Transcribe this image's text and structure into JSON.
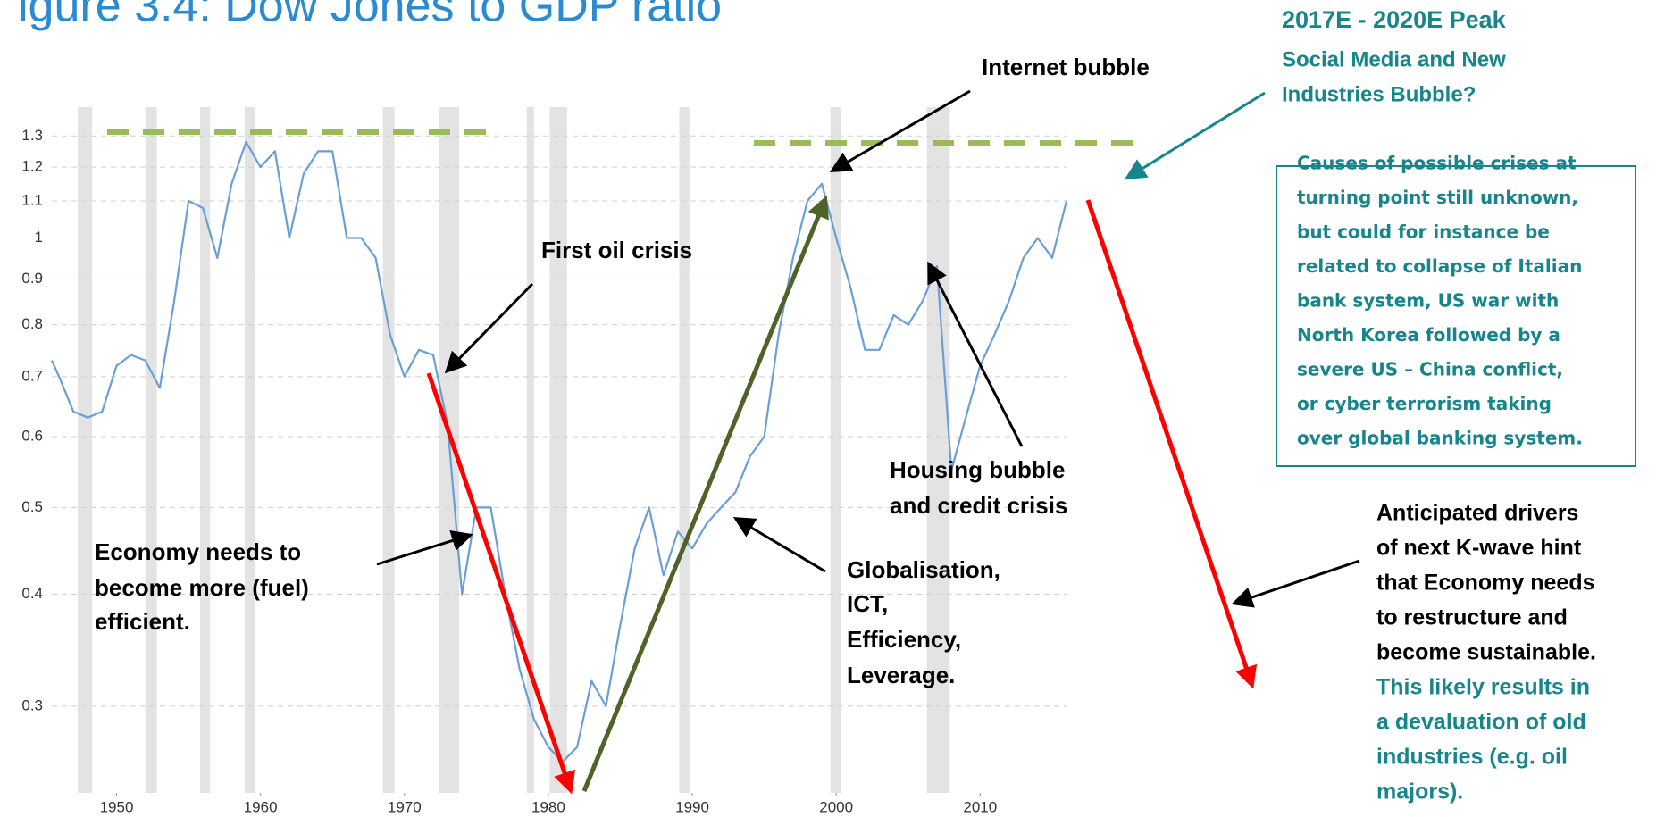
{
  "chart_data": {
    "type": "line",
    "title": "igure 3.4: Dow Jones to GDP ratio",
    "log_y": true,
    "grid": true,
    "color": "#6a9fd6",
    "recession_color": "#e3e3e3",
    "xlim": [
      1945.5,
      2016
    ],
    "ylim": [
      0.24,
      1.4
    ],
    "xticks": [
      1950,
      1960,
      1970,
      1980,
      1990,
      2000,
      2010
    ],
    "yticks": [
      0.3,
      0.4,
      0.5,
      0.6,
      0.7,
      0.8,
      0.9,
      1,
      1.1,
      1.2,
      1.3
    ],
    "recessions": [
      [
        1947.3,
        1948.3
      ],
      [
        1952.0,
        1952.8
      ],
      [
        1955.8,
        1956.5
      ],
      [
        1958.9,
        1959.6
      ],
      [
        1968.5,
        1969.3
      ],
      [
        1972.4,
        1973.8
      ],
      [
        1978.5,
        1979.0
      ],
      [
        1980.1,
        1981.3
      ],
      [
        1989.1,
        1989.8
      ],
      [
        1999.6,
        2000.3
      ],
      [
        2006.3,
        2007.9
      ]
    ],
    "x": [
      1945.5,
      1946,
      1947,
      1948,
      1949,
      1950,
      1951,
      1952,
      1953,
      1954,
      1955,
      1956,
      1957,
      1958,
      1959,
      1960,
      1961,
      1962,
      1963,
      1964,
      1965,
      1966,
      1967,
      1968,
      1969,
      1970,
      1971,
      1972,
      1973,
      1974,
      1975,
      1976,
      1977,
      1978,
      1979,
      1980,
      1981,
      1982,
      1983,
      1984,
      1985,
      1986,
      1987,
      1988,
      1989,
      1990,
      1991,
      1992,
      1993,
      1994,
      1995,
      1996,
      1997,
      1998,
      1999,
      2000,
      2001,
      2002,
      2003,
      2004,
      2005,
      2006,
      2007,
      2008,
      2009,
      2010,
      2011,
      2012,
      2013,
      2014,
      2015,
      2016
    ],
    "values": [
      0.73,
      0.7,
      0.64,
      0.63,
      0.64,
      0.72,
      0.74,
      0.73,
      0.68,
      0.85,
      1.1,
      1.08,
      0.95,
      1.15,
      1.28,
      1.2,
      1.25,
      1.0,
      1.18,
      1.25,
      1.25,
      1.0,
      1.0,
      0.95,
      0.78,
      0.7,
      0.75,
      0.74,
      0.62,
      0.4,
      0.5,
      0.5,
      0.4,
      0.33,
      0.29,
      0.27,
      0.26,
      0.27,
      0.32,
      0.3,
      0.37,
      0.45,
      0.5,
      0.42,
      0.47,
      0.45,
      0.48,
      0.5,
      0.52,
      0.57,
      0.6,
      0.78,
      0.95,
      1.1,
      1.15,
      1.0,
      0.88,
      0.75,
      0.75,
      0.82,
      0.8,
      0.85,
      0.93,
      0.55,
      0.63,
      0.72,
      0.78,
      0.85,
      0.95,
      1.0,
      0.95,
      1.1
    ],
    "annotations": [
      [
        "Internet bubble"
      ],
      [
        "First oil crisis"
      ],
      [
        "Housing bubble",
        "and credit crisis"
      ],
      [
        "Economy needs to",
        "become more (fuel)",
        "efficient."
      ],
      [
        "Globalisation,",
        "ICT,",
        "Efficiency,",
        "Leverage."
      ]
    ],
    "peak_note": [
      "2017E - 2020E Peak",
      "Social Media and New",
      "Industries Bubble?"
    ],
    "causes": [
      "Causes of possible crises at",
      "turning point still unknown,",
      "but could for instance be",
      "related to collapse of Italian",
      "bank system, US war with",
      "North Korea followed by a",
      "severe US – China conflict,",
      "or  cyber terrorism taking",
      "over global banking system."
    ],
    "drivers": [
      "Anticipated drivers",
      "of next K-wave hint",
      "that Economy needs",
      "to restructure and",
      "become sustainable."
    ],
    "drivers_outcome": [
      "This likely results in",
      "a devaluation of old",
      "industries (e.g. oil",
      "majors)."
    ]
  }
}
